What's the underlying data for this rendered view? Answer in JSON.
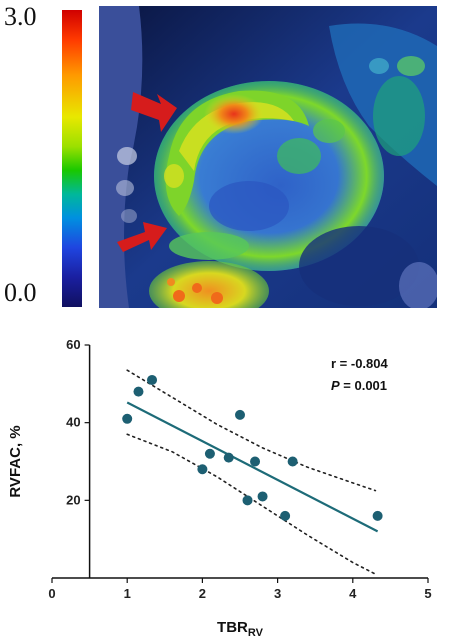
{
  "colorbar": {
    "max_label": "3.0",
    "min_label": "0.0"
  },
  "pet_image": {
    "arrow_count": 2,
    "arrow_color": "#d61c1c"
  },
  "chart_data": {
    "type": "scatter",
    "title": "",
    "xlabel_main": "TBR",
    "xlabel_sub": "RV",
    "ylabel": "RVFAC, %",
    "xlim": [
      0,
      5
    ],
    "ylim": [
      0,
      60
    ],
    "x_ticks": [
      0,
      1,
      2,
      3,
      4,
      5
    ],
    "y_ticks": [
      20,
      40,
      60
    ],
    "y_axis_at_x": 0.5,
    "points": [
      {
        "x": 1.0,
        "y": 41
      },
      {
        "x": 1.15,
        "y": 48
      },
      {
        "x": 1.33,
        "y": 51
      },
      {
        "x": 2.0,
        "y": 28
      },
      {
        "x": 2.1,
        "y": 32
      },
      {
        "x": 2.35,
        "y": 31
      },
      {
        "x": 2.5,
        "y": 42
      },
      {
        "x": 2.6,
        "y": 20
      },
      {
        "x": 2.7,
        "y": 30
      },
      {
        "x": 2.8,
        "y": 21
      },
      {
        "x": 3.1,
        "y": 16
      },
      {
        "x": 3.2,
        "y": 30
      },
      {
        "x": 4.33,
        "y": 16
      }
    ],
    "regression": {
      "x": [
        1.0,
        4.33
      ],
      "y": [
        45.2,
        12.0
      ]
    },
    "ci_upper": {
      "x": [
        1.0,
        1.6,
        2.2,
        2.8,
        3.4,
        4.0,
        4.3
      ],
      "y": [
        53.5,
        46.5,
        39.5,
        33.5,
        28.5,
        24.5,
        22.5
      ]
    },
    "ci_lower": {
      "x": [
        1.0,
        1.6,
        2.2,
        2.8,
        3.4,
        4.0,
        4.3
      ],
      "y": [
        37.0,
        32.5,
        26.0,
        18.5,
        11.0,
        4.0,
        1.0
      ]
    },
    "colors": {
      "points": "#1d5f72",
      "line": "#1d6b78",
      "ci": "#222222"
    },
    "stats": {
      "r_text": "r = -0.804",
      "p_label": "P",
      "p_value_text": " = 0.001"
    },
    "grid": false
  }
}
